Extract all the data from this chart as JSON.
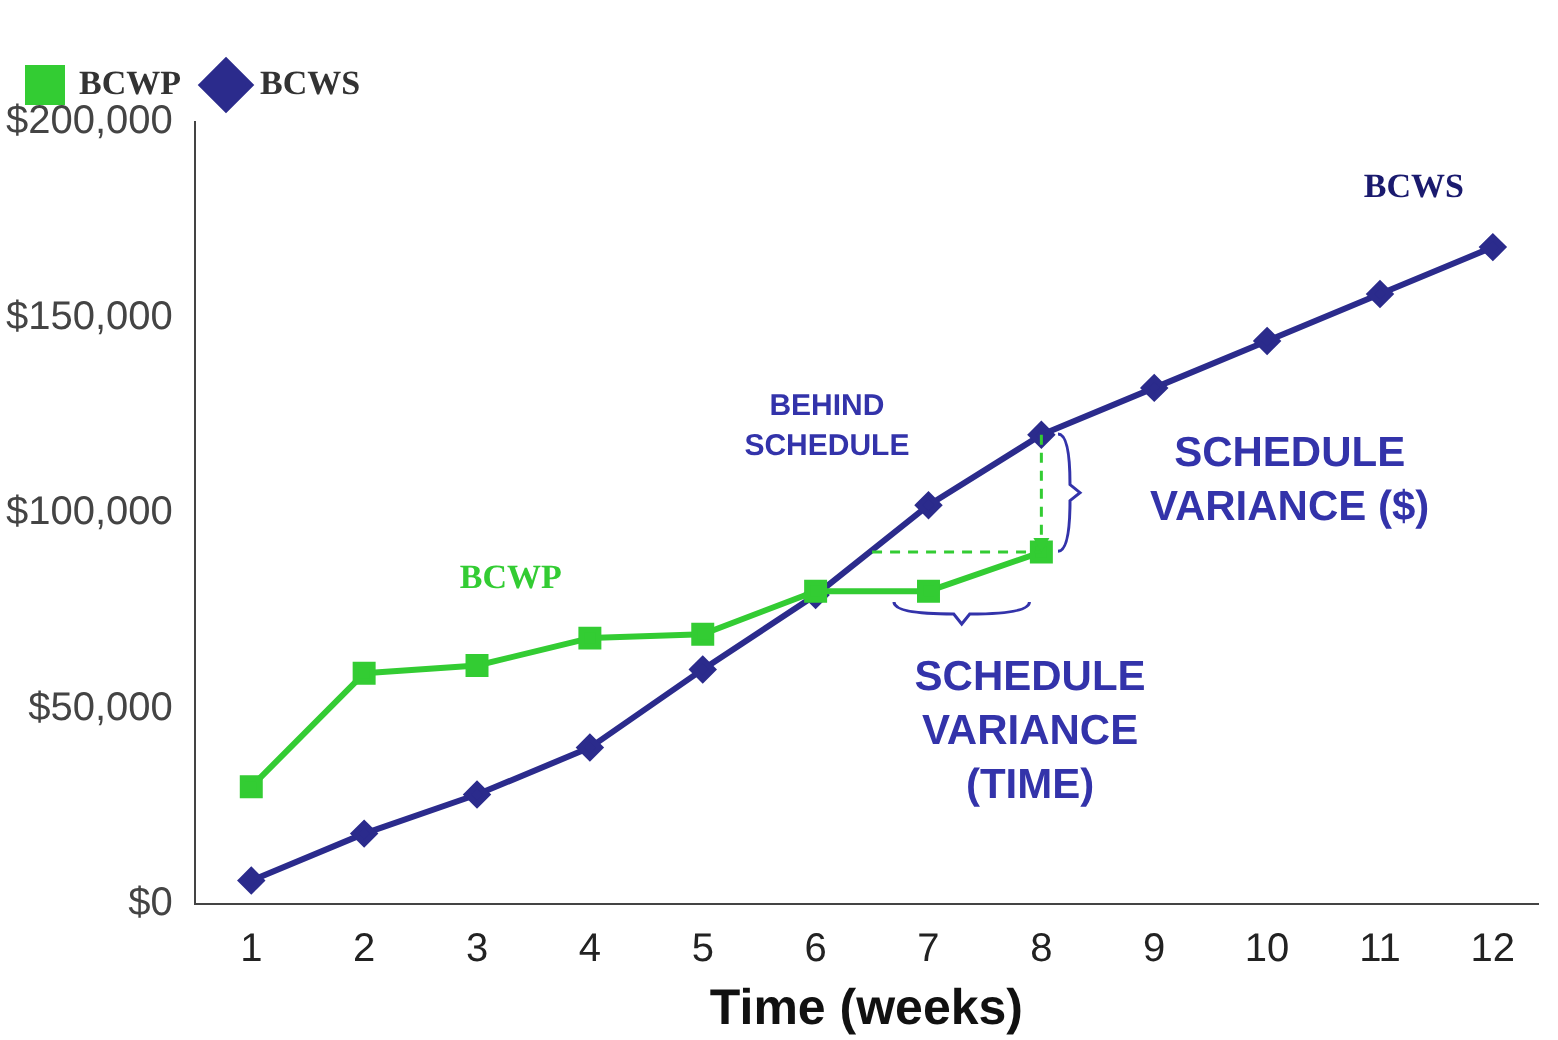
{
  "chart_data": {
    "type": "line",
    "xlabel": "Time (weeks)",
    "xlim": [
      0.5,
      12.4
    ],
    "xticks": [
      1,
      2,
      3,
      4,
      5,
      6,
      7,
      8,
      9,
      10,
      11,
      12
    ],
    "ylim": [
      0,
      200000
    ],
    "yticks": [
      {
        "value": 0,
        "label": "$0"
      },
      {
        "value": 50000,
        "label": "$50,000"
      },
      {
        "value": 100000,
        "label": "$100,000"
      },
      {
        "value": 150000,
        "label": "$150,000"
      },
      {
        "value": 200000,
        "label": "$200,000"
      }
    ],
    "series": [
      {
        "name": "BCWS",
        "color": "#2b2b8c",
        "marker": "diamond",
        "x": [
          1,
          2,
          3,
          4,
          5,
          6,
          7,
          8,
          9,
          10,
          11,
          12
        ],
        "values": [
          6000,
          18000,
          28000,
          40000,
          60000,
          79000,
          102000,
          120000,
          132000,
          144000,
          156000,
          168000
        ]
      },
      {
        "name": "BCWP",
        "color": "#33cc33",
        "marker": "square",
        "x": [
          1,
          2,
          3,
          4,
          5,
          6,
          7,
          8
        ],
        "values": [
          30000,
          59000,
          61000,
          68000,
          69000,
          80000,
          80000,
          90000
        ]
      }
    ],
    "legend": "top left",
    "grid": false,
    "line_style": "solid",
    "annotations": [
      "BCWS",
      "BCWP",
      "BEHIND\nSCHEDULE",
      "SCHEDULE\nVARIANCE ($)",
      "SCHEDULE\nVARIANCE\n(TIME)"
    ]
  }
}
